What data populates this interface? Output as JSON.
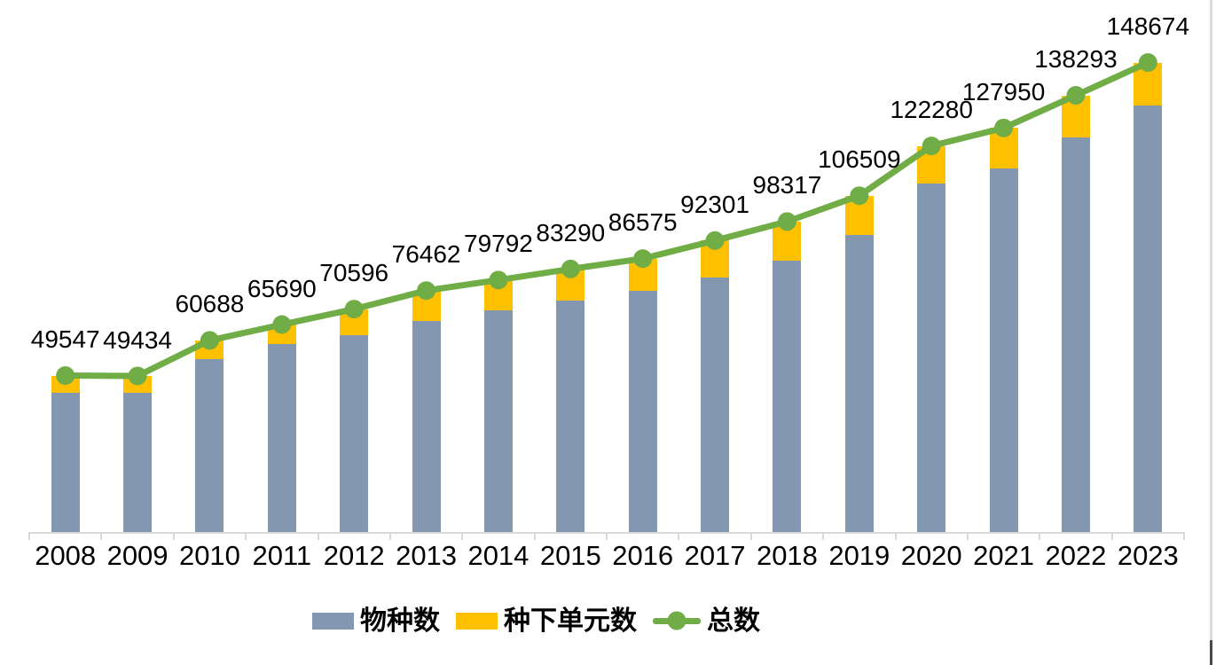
{
  "chart_data": {
    "type": "bar",
    "subtype": "stacked-bar-with-line-overlay",
    "categories": [
      "2008",
      "2009",
      "2010",
      "2011",
      "2012",
      "2013",
      "2014",
      "2015",
      "2016",
      "2017",
      "2018",
      "2019",
      "2020",
      "2021",
      "2022",
      "2023"
    ],
    "series": [
      {
        "name": "物种数",
        "type": "bar",
        "color": "#8497B0",
        "values": [
          44200,
          44200,
          54900,
          59400,
          62400,
          66700,
          70300,
          73400,
          76500,
          80600,
          85900,
          94100,
          110231,
          115064,
          125034,
          135061
        ]
      },
      {
        "name": "种下单元数",
        "type": "bar",
        "color": "#FFC000",
        "values": [
          5347,
          5234,
          5788,
          6290,
          8196,
          9762,
          9492,
          9890,
          10075,
          11701,
          12417,
          12409,
          12049,
          12886,
          13259,
          13613
        ]
      },
      {
        "name": "总数",
        "type": "line",
        "color": "#70AD47",
        "values": [
          49547,
          49434,
          60688,
          65690,
          70596,
          76462,
          79792,
          83290,
          86575,
          92301,
          98317,
          106509,
          122280,
          127950,
          138293,
          148674
        ],
        "data_labels_visible": true
      }
    ],
    "data_labels": [
      "49547",
      "49434",
      "60688",
      "65690",
      "70596",
      "76462",
      "79792",
      "83290",
      "86575",
      "92301",
      "98317",
      "106509",
      "122280",
      "127950",
      "138293",
      "148674"
    ],
    "title": "",
    "xlabel": "",
    "ylabel": "",
    "ylim": [
      0,
      168600
    ],
    "grid": false,
    "y_axis_visible": false,
    "x_axis_color": "#D9D9D9",
    "label_text_color": "#000000",
    "legend_position": "bottom"
  },
  "legend": {
    "species_label": "物种数",
    "infraspecific_label": "种下单元数",
    "total_label": "总数"
  }
}
